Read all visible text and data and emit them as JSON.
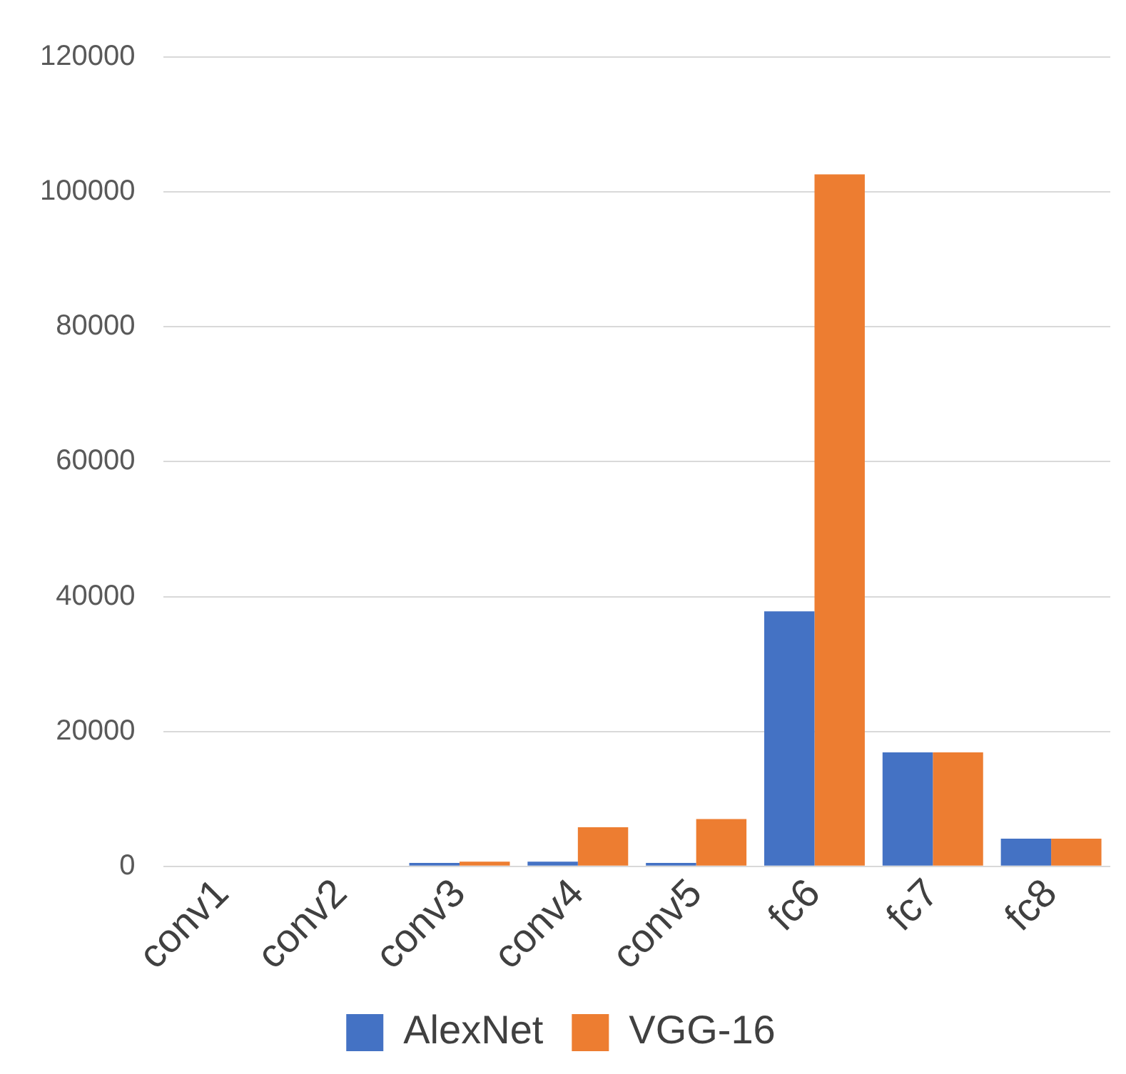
{
  "chart_data": {
    "type": "bar",
    "categories": [
      "conv1",
      "conv2",
      "conv3",
      "conv4",
      "conv5",
      "fc6",
      "fc7",
      "fc8"
    ],
    "series": [
      {
        "name": "AlexNet",
        "color": "#4472c4",
        "values": [
          0,
          0,
          500,
          700,
          500,
          37800,
          16900,
          4100
        ]
      },
      {
        "name": "VGG-16",
        "color": "#ed7d31",
        "values": [
          0,
          0,
          700,
          5800,
          7000,
          102600,
          16900,
          4100
        ]
      }
    ],
    "ylim": [
      0,
      120000
    ],
    "yticks": [
      0,
      20000,
      40000,
      60000,
      80000,
      100000,
      120000
    ],
    "grid": "y",
    "legend": "bottom"
  }
}
